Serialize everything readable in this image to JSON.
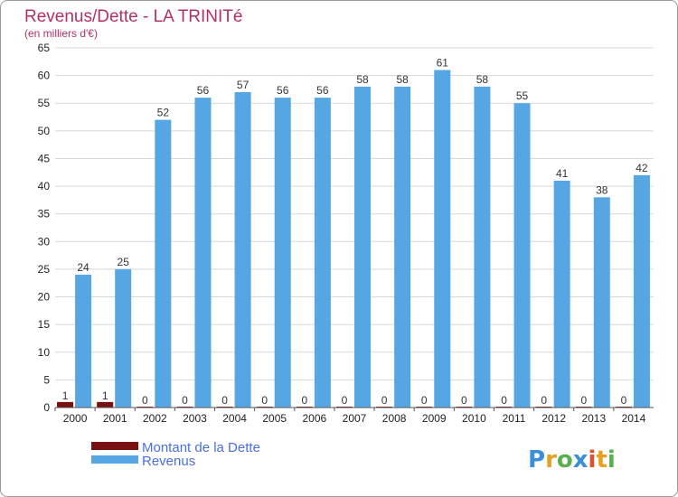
{
  "chart_data": {
    "type": "bar",
    "title": "Revenus/Dette - LA TRINITé",
    "subtitle": "(en milliers d'€)",
    "categories": [
      "2000",
      "2001",
      "2002",
      "2003",
      "2004",
      "2005",
      "2006",
      "2007",
      "2008",
      "2009",
      "2010",
      "2011",
      "2012",
      "2013",
      "2014"
    ],
    "series": [
      {
        "name": "Montant de la Dette",
        "color": "#7a1010",
        "values": [
          1,
          1,
          0,
          0,
          0,
          0,
          0,
          0,
          0,
          0,
          0,
          0,
          0,
          0,
          0
        ]
      },
      {
        "name": "Revenus",
        "color": "#55a6e2",
        "values": [
          24,
          25,
          52,
          56,
          57,
          56,
          56,
          58,
          58,
          61,
          58,
          55,
          41,
          38,
          42
        ]
      }
    ],
    "ylim": [
      0,
      65
    ],
    "ytick_step": 5,
    "xlabel": "",
    "ylabel": "",
    "grid": true,
    "legend_position": "bottom-left"
  },
  "logo": {
    "letters": [
      {
        "ch": "P",
        "color": "#3a8fd8"
      },
      {
        "ch": "r",
        "color": "#e8a020"
      },
      {
        "ch": "o",
        "color": "#5ab050"
      },
      {
        "ch": "x",
        "color": "#3a8fd8"
      },
      {
        "ch": "i",
        "color": "#e05030"
      },
      {
        "ch": "t",
        "color": "#e8a020"
      },
      {
        "ch": "i",
        "color": "#5ab050"
      }
    ]
  },
  "colors": {
    "grid": "#d8d8d8",
    "axis": "#555555",
    "title": "#b0306a",
    "legend_text": "#4a6fe0"
  }
}
